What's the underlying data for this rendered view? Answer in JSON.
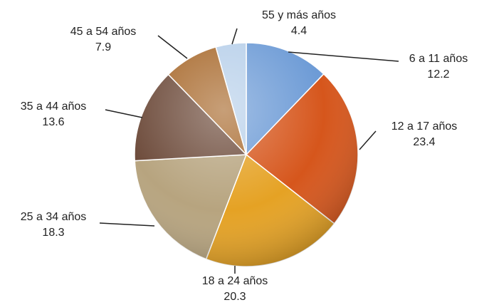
{
  "chart_data": {
    "type": "pie",
    "categories": [
      "6 a 11 años",
      "12 a 17 años",
      "18 a 24 años",
      "25 a 34 años",
      "35 a 44 años",
      "45 a 54 años",
      "55 y más años"
    ],
    "values": [
      12.2,
      23.4,
      20.3,
      18.3,
      13.6,
      7.9,
      4.4
    ],
    "colors": [
      "#6d9bd6",
      "#d6561c",
      "#e5a224",
      "#b7a47f",
      "#6e4c3c",
      "#a96b2f",
      "#b8d0ea"
    ]
  }
}
